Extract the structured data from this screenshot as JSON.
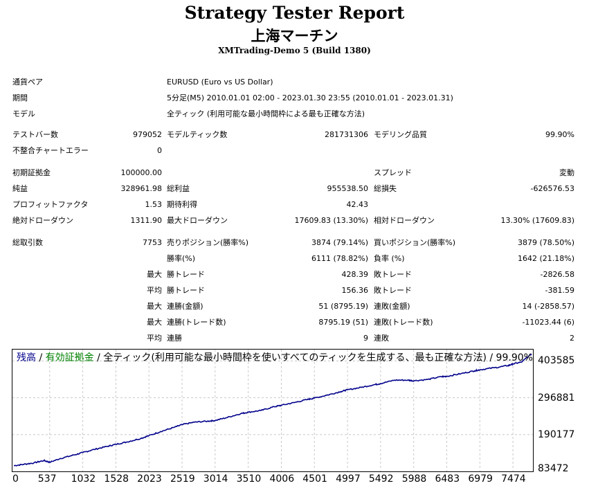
{
  "header": {
    "title": "Strategy Tester Report",
    "subtitle": "上海マーチン",
    "server": "XMTrading-Demo 5 (Build 1380)"
  },
  "info": [
    {
      "label": "通貨ペア",
      "value": "EURUSD (Euro vs US Dollar)"
    },
    {
      "label": "期間",
      "value": "5分足(M5) 2010.01.01 02:00 - 2023.01.30 23:55 (2010.01.01 - 2023.01.31)"
    },
    {
      "label": "モデル",
      "value": "全ティック (利用可能な最小時間枠による最も正確な方法)"
    }
  ],
  "stats": {
    "bars": {
      "label": "テストバー数",
      "value": "979052"
    },
    "ticks": {
      "label": "モデルティック数",
      "value": "281731306"
    },
    "quality": {
      "label": "モデリング品質",
      "value": "99.90%"
    },
    "mismatch": {
      "label": "不整合チャートエラー",
      "value": "0"
    },
    "deposit": {
      "label": "初期証拠金",
      "value": "100000.00"
    },
    "spread": {
      "label": "スプレッド",
      "value": "変動"
    },
    "net_profit": {
      "label": "純益",
      "value": "328961.98"
    },
    "gross_profit": {
      "label": "総利益",
      "value": "955538.50"
    },
    "gross_loss": {
      "label": "総損失",
      "value": "-626576.53"
    },
    "profit_factor": {
      "label": "プロフィットファクタ",
      "value": "1.53"
    },
    "expected_payoff": {
      "label": "期待利得",
      "value": "42.43"
    },
    "abs_dd": {
      "label": "絶対ドローダウン",
      "value": "1311.90"
    },
    "max_dd": {
      "label": "最大ドローダウン",
      "value": "17609.83 (13.30%)"
    },
    "rel_dd": {
      "label": "相対ドローダウン",
      "value": "13.30% (17609.83)"
    },
    "total_trades": {
      "label": "総取引数",
      "value": "7753"
    },
    "short_pos": {
      "label": "売りポジション(勝率%)",
      "value": "3874 (79.14%)"
    },
    "long_pos": {
      "label": "買いポジション(勝率%)",
      "value": "3879 (78.50%)"
    },
    "win_rate": {
      "label": "勝率(%)",
      "value": "6111 (78.82%)"
    },
    "loss_rate": {
      "label": "負率 (%)",
      "value": "1642 (21.18%)"
    },
    "largest_win": {
      "prefix": "最大",
      "label": "勝トレード",
      "value": "428.39"
    },
    "largest_loss": {
      "label": "敗トレード",
      "value": "-2826.58"
    },
    "avg_win": {
      "prefix": "平均",
      "label": "勝トレード",
      "value": "156.36"
    },
    "avg_loss": {
      "label": "敗トレード",
      "value": "-381.59"
    },
    "max_cons_wins": {
      "prefix": "最大",
      "label": "連勝(金額)",
      "value": "51 (8795.19)"
    },
    "max_cons_losses": {
      "label": "連敗(金額)",
      "value": "14 (-2858.57)"
    },
    "max_cons_profit": {
      "prefix": "最大",
      "label": "連勝(トレード数)",
      "value": "8795.19 (51)"
    },
    "max_cons_loss": {
      "label": "連敗(トレード数)",
      "value": "-11023.44 (6)"
    },
    "avg_cons_wins": {
      "prefix": "平均",
      "label": "連勝",
      "value": "9"
    },
    "avg_cons_losses": {
      "label": "連敗",
      "value": "2"
    }
  },
  "chart": {
    "legend_balance": "残高",
    "legend_sep1": " / ",
    "legend_equity": "有効証拠金",
    "legend_rest": " / 全ティック(利用可能な最小時間枠を使いすべてのティックを生成する、最も正確な方法) / 99.90%",
    "line_color": "#00008b"
  },
  "chart_data": {
    "type": "line",
    "x_ticks": [
      0,
      537,
      1032,
      1528,
      2023,
      2519,
      3014,
      3510,
      4006,
      4501,
      4997,
      5492,
      5988,
      6483,
      6979,
      7474
    ],
    "x_tick_labels": [
      "0",
      "537",
      "1032",
      "1528",
      "2023",
      "2519",
      "3014",
      "3510",
      "4006",
      "4501",
      "4997",
      "5492",
      "5988",
      "6483",
      "6979",
      "7474"
    ],
    "y_ticks": [
      83472,
      190177,
      296881,
      403585
    ],
    "y_tick_labels": [
      "83472",
      "190177",
      "296881",
      "403585"
    ],
    "xlim": [
      0,
      7753
    ],
    "ylim": [
      83472,
      436600
    ],
    "grid": true,
    "series": [
      {
        "x": [
          0,
          150,
          300,
          450,
          537,
          700,
          900,
          1032,
          1200,
          1400,
          1528,
          1700,
          1900,
          2023,
          2200,
          2400,
          2519,
          2700,
          2900,
          3014,
          3200,
          3400,
          3510,
          3700,
          3900,
          4006,
          4200,
          4400,
          4501,
          4700,
          4900,
          4997,
          5200,
          5400,
          5492,
          5700,
          5900,
          5988,
          6200,
          6400,
          6483,
          6700,
          6900,
          6979,
          7200,
          7400,
          7474,
          7600,
          7753
        ],
        "y": [
          100000,
          104000,
          108000,
          115000,
          110000,
          121000,
          131000,
          138000,
          147000,
          156000,
          162000,
          169000,
          179000,
          187000,
          199000,
          211000,
          219000,
          226000,
          229000,
          231000,
          240000,
          251000,
          255000,
          260000,
          271000,
          275000,
          283000,
          292000,
          296000,
          305000,
          315000,
          320000,
          327000,
          335000,
          338000,
          348000,
          348000,
          346000,
          350000,
          358000,
          359000,
          367000,
          375000,
          378000,
          384000,
          390000,
          395000,
          400000,
          424000
        ]
      }
    ]
  }
}
